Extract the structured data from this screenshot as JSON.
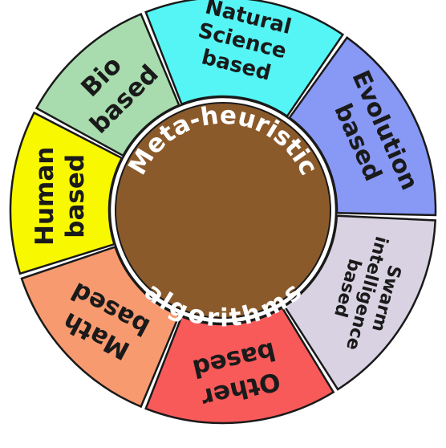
{
  "hub": {
    "fill": "#8b5a2b",
    "top_text": "Meta-heuristic",
    "bottom_text": "algorithms"
  },
  "segments": [
    {
      "id": "natural-science",
      "lines": [
        "Natural",
        "Science",
        "based"
      ],
      "color": "#55f5f5"
    },
    {
      "id": "evolution",
      "lines": [
        "Evolution",
        "based"
      ],
      "color": "#8898f5"
    },
    {
      "id": "swarm",
      "lines": [
        "Swarm",
        "intelligence",
        "based"
      ],
      "color": "#d8d2e2"
    },
    {
      "id": "other",
      "lines": [
        "Other",
        "based"
      ],
      "color": "#f85a5a"
    },
    {
      "id": "math",
      "lines": [
        "Math",
        "based"
      ],
      "color": "#f89a70"
    },
    {
      "id": "human",
      "lines": [
        "Human",
        "based"
      ],
      "color": "#f8f800"
    },
    {
      "id": "bio",
      "lines": [
        "Bio",
        "based"
      ],
      "color": "#a8dcae"
    }
  ]
}
